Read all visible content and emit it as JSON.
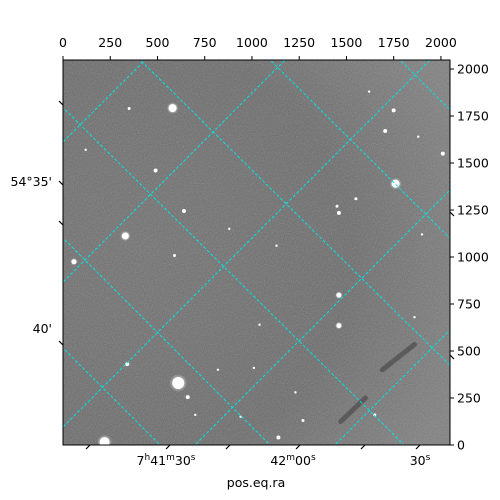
{
  "chart_data": {
    "type": "image",
    "xlabel": "pos.eq.ra",
    "ylabel": "",
    "pixel_xlim": [
      0,
      2048
    ],
    "pixel_ylim": [
      0,
      2048
    ],
    "top_ticks": [
      0,
      250,
      500,
      750,
      1000,
      1250,
      1500,
      1750,
      2000
    ],
    "right_ticks": [
      0,
      250,
      500,
      750,
      1000,
      1250,
      1500,
      1750,
      2000
    ],
    "ra_tick_labels": [
      {
        "main": "7",
        "h": "h",
        "mid": "41",
        "m": "m",
        "tail": "30",
        "s": "s"
      },
      {
        "main": "42",
        "m": "m",
        "mid": "00",
        "s": "s"
      },
      {
        "main": "30",
        "s": "s"
      }
    ],
    "dec_tick_labels": [
      "54°35'",
      "40'"
    ],
    "grid": true,
    "grid_color": "#00e5e5",
    "stars": [
      {
        "x": 580,
        "y": 1792,
        "r": 4
      },
      {
        "x": 350,
        "y": 1790,
        "r": 1.5
      },
      {
        "x": 490,
        "y": 1460,
        "r": 2
      },
      {
        "x": 640,
        "y": 1245,
        "r": 2
      },
      {
        "x": 330,
        "y": 1112,
        "r": 3.5
      },
      {
        "x": 58,
        "y": 975,
        "r": 2.5
      },
      {
        "x": 590,
        "y": 1008,
        "r": 1.5
      },
      {
        "x": 1460,
        "y": 797,
        "r": 2.5
      },
      {
        "x": 1460,
        "y": 635,
        "r": 2.5
      },
      {
        "x": 1460,
        "y": 1235,
        "r": 2
      },
      {
        "x": 1750,
        "y": 1780,
        "r": 2
      },
      {
        "x": 1705,
        "y": 1670,
        "r": 2
      },
      {
        "x": 1760,
        "y": 1390,
        "r": 4
      },
      {
        "x": 2010,
        "y": 1550,
        "r": 2
      },
      {
        "x": 1550,
        "y": 1310,
        "r": 1.5
      },
      {
        "x": 1450,
        "y": 1270,
        "r": 1.5
      },
      {
        "x": 340,
        "y": 430,
        "r": 2
      },
      {
        "x": 610,
        "y": 330,
        "r": 6
      },
      {
        "x": 660,
        "y": 255,
        "r": 2
      },
      {
        "x": 220,
        "y": 15,
        "r": 5
      },
      {
        "x": 1140,
        "y": 40,
        "r": 2
      },
      {
        "x": 1270,
        "y": 130,
        "r": 1.5
      },
      {
        "x": 1650,
        "y": 160,
        "r": 1.5
      },
      {
        "x": 1620,
        "y": 1880,
        "r": 1.2
      },
      {
        "x": 880,
        "y": 1150,
        "r": 1.2
      },
      {
        "x": 1130,
        "y": 1060,
        "r": 1.2
      },
      {
        "x": 1040,
        "y": 640,
        "r": 1.2
      },
      {
        "x": 820,
        "y": 400,
        "r": 1.2
      },
      {
        "x": 1230,
        "y": 280,
        "r": 1.2
      },
      {
        "x": 120,
        "y": 1570,
        "r": 1.2
      },
      {
        "x": 1880,
        "y": 1640,
        "r": 1.2
      },
      {
        "x": 1900,
        "y": 1120,
        "r": 1.2
      },
      {
        "x": 1860,
        "y": 680,
        "r": 1.2
      },
      {
        "x": 700,
        "y": 160,
        "r": 1.2
      },
      {
        "x": 940,
        "y": 150,
        "r": 1.2
      },
      {
        "x": 1010,
        "y": 410,
        "r": 1.2
      }
    ],
    "streaks": [
      {
        "x1": 1690,
        "y1": 400,
        "x2": 1860,
        "y2": 535
      },
      {
        "x1": 1470,
        "y1": 125,
        "x2": 1600,
        "y2": 250
      }
    ]
  }
}
